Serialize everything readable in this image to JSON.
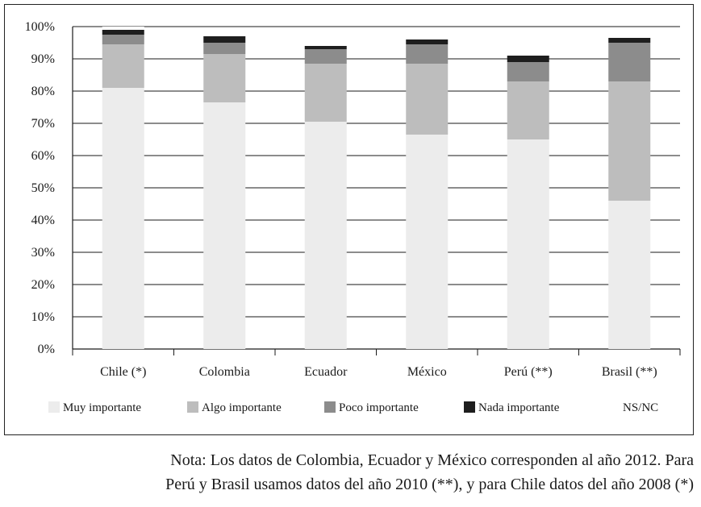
{
  "chart_data": {
    "type": "bar",
    "stacked": true,
    "categories": [
      "Chile (*)",
      "Colombia",
      "Ecuador",
      "México",
      "Perú (**)",
      "Brasil (**)"
    ],
    "series": [
      {
        "name": "Muy importante",
        "color": "#ececec",
        "values": [
          81,
          76.5,
          70.5,
          66.5,
          65,
          46
        ]
      },
      {
        "name": "Algo importante",
        "color": "#bdbdbd",
        "values": [
          13.5,
          15,
          18,
          22,
          18,
          37
        ]
      },
      {
        "name": "Poco importante",
        "color": "#8c8c8c",
        "values": [
          3,
          3.5,
          4.5,
          6,
          6,
          12
        ]
      },
      {
        "name": "Nada importante",
        "color": "#1e1e1e",
        "values": [
          1.5,
          2,
          1,
          1.5,
          2,
          1.5
        ]
      },
      {
        "name": "NS/NC",
        "color": "#ffffff",
        "values": [
          1,
          1,
          0.5,
          0.5,
          0,
          0.5
        ]
      }
    ],
    "yticks": [
      "0%",
      "10%",
      "20%",
      "30%",
      "40%",
      "50%",
      "60%",
      "70%",
      "80%",
      "90%",
      "100%"
    ],
    "ylim": [
      0,
      100
    ],
    "grid": true,
    "legend": "bottom"
  },
  "note": {
    "line1": "Nota: Los datos de Colombia, Ecuador y México corresponden al año 2012. Para",
    "line2": "Perú y Brasil usamos datos del año 2010 (**), y para Chile datos del año 2008 (*)"
  }
}
